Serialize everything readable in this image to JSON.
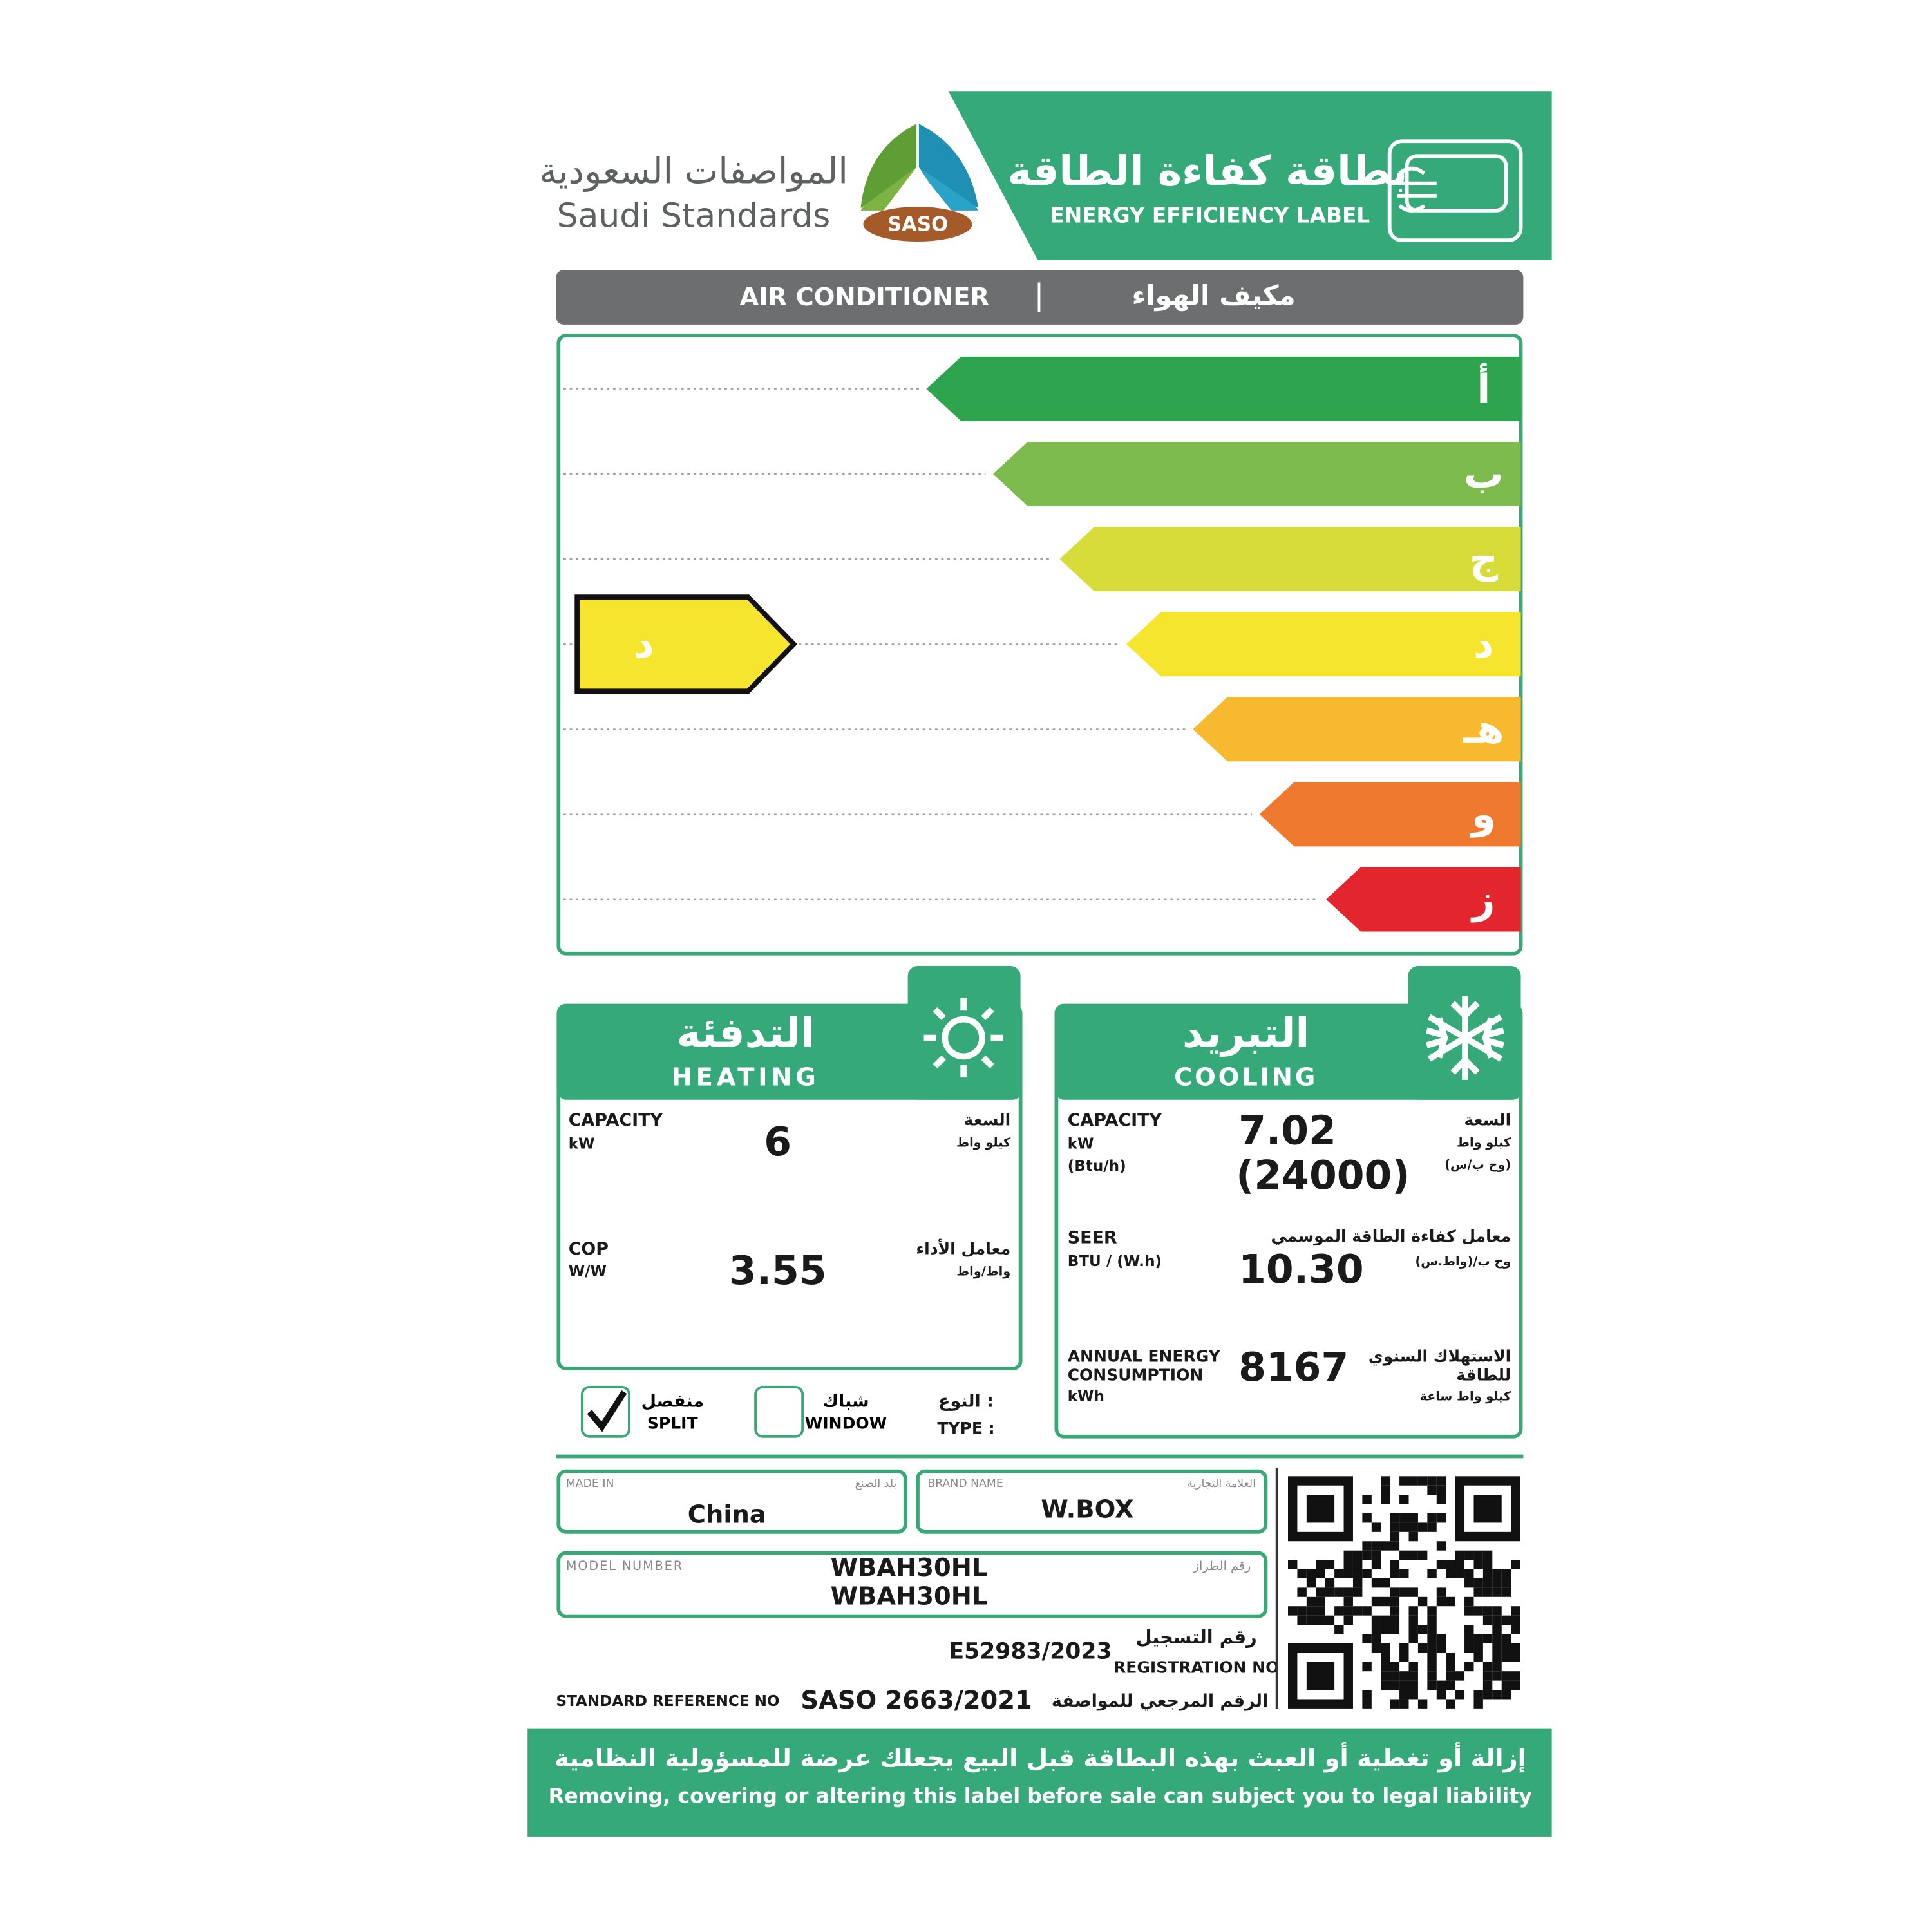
{
  "header": {
    "title_ar": "بطاقة كفاءة الطاقة",
    "title_en": "ENERGY EFFICIENCY LABEL",
    "org_ar": "المواصفات السعودية",
    "org_en": "Saudi Standards",
    "logo": "SASO"
  },
  "product": {
    "name_en": "AIR CONDITIONER",
    "name_ar": "مكيف الهواء"
  },
  "rating": {
    "classes": [
      {
        "label": "أ",
        "color": "#2ea44f"
      },
      {
        "label": "ب",
        "color": "#7dbb4e"
      },
      {
        "label": "ج",
        "color": "#d7dc3b"
      },
      {
        "label": "د",
        "color": "#f5e52e"
      },
      {
        "label": "هـ",
        "color": "#f6b92f"
      },
      {
        "label": "و",
        "color": "#ef7a2f"
      },
      {
        "label": "ز",
        "color": "#e3252e"
      }
    ],
    "selected": "د"
  },
  "heating": {
    "title_ar": "التدفئة",
    "title_en": "HEATING",
    "capacity": {
      "label": "CAPACITY",
      "unit": "kW",
      "label_ar": "السعة",
      "unit_ar": "كيلو واط",
      "value": "6"
    },
    "cop": {
      "label": "COP",
      "unit": "W/W",
      "label_ar": "معامل الأداء",
      "unit_ar": "واط/واط",
      "value": "3.55"
    }
  },
  "cooling": {
    "title_ar": "التبريد",
    "title_en": "COOLING",
    "capacity": {
      "label": "CAPACITY",
      "unit": "kW",
      "unit2": "(Btu/h)",
      "label_ar": "السعة",
      "unit_ar": "كيلو واط",
      "unit2_ar": "(وح ب/س)",
      "value": "7.02",
      "value2": "(24000)"
    },
    "seer": {
      "label": "SEER",
      "unit": "BTU / (W.h)",
      "label_ar": "معامل كفاءة الطاقة الموسمي",
      "unit_ar": "وح ب/(واط.س)",
      "value": "10.30"
    },
    "annual": {
      "label_line1": "ANNUAL ENERGY",
      "label_line2": "CONSUMPTION",
      "unit": "kWh",
      "label_ar_line1": "الاستهلاك السنوي",
      "label_ar_line2": "للطاقة",
      "unit_ar": "كيلو واط ساعة",
      "value": "8167"
    }
  },
  "type": {
    "label_ar": "النوع :",
    "label_en": "TYPE :",
    "options": [
      {
        "ar": "منفصل",
        "en": "SPLIT",
        "checked": true
      },
      {
        "ar": "شباك",
        "en": "WINDOW",
        "checked": false
      }
    ]
  },
  "details": {
    "made_in": {
      "label": "MADE IN",
      "label_ar": "بلد الصنع",
      "value": "China"
    },
    "brand": {
      "label": "BRAND NAME",
      "label_ar": "العلامة التجارية",
      "value": "W.BOX"
    },
    "model": {
      "label": "MODEL NUMBER",
      "label_ar": "رقم الطراز",
      "values": [
        "WBAH30HL",
        "WBAH30HL"
      ]
    },
    "registration": {
      "label_ar": "رقم التسجيل",
      "label": "REGISTRATION NO",
      "value": "E52983/2023"
    },
    "standard": {
      "label": "STANDARD REFERENCE NO",
      "value": "SASO 2663/2021",
      "label_ar": "الرقم المرجعي للمواصفة"
    }
  },
  "footer": {
    "warning_ar": "إزالة أو تغطية أو العبث بهذه البطاقة قبل البيع يجعلك عرضة للمسؤولية النظامية",
    "warning_en": "Removing, covering or altering this label before sale can subject you to legal liability"
  }
}
